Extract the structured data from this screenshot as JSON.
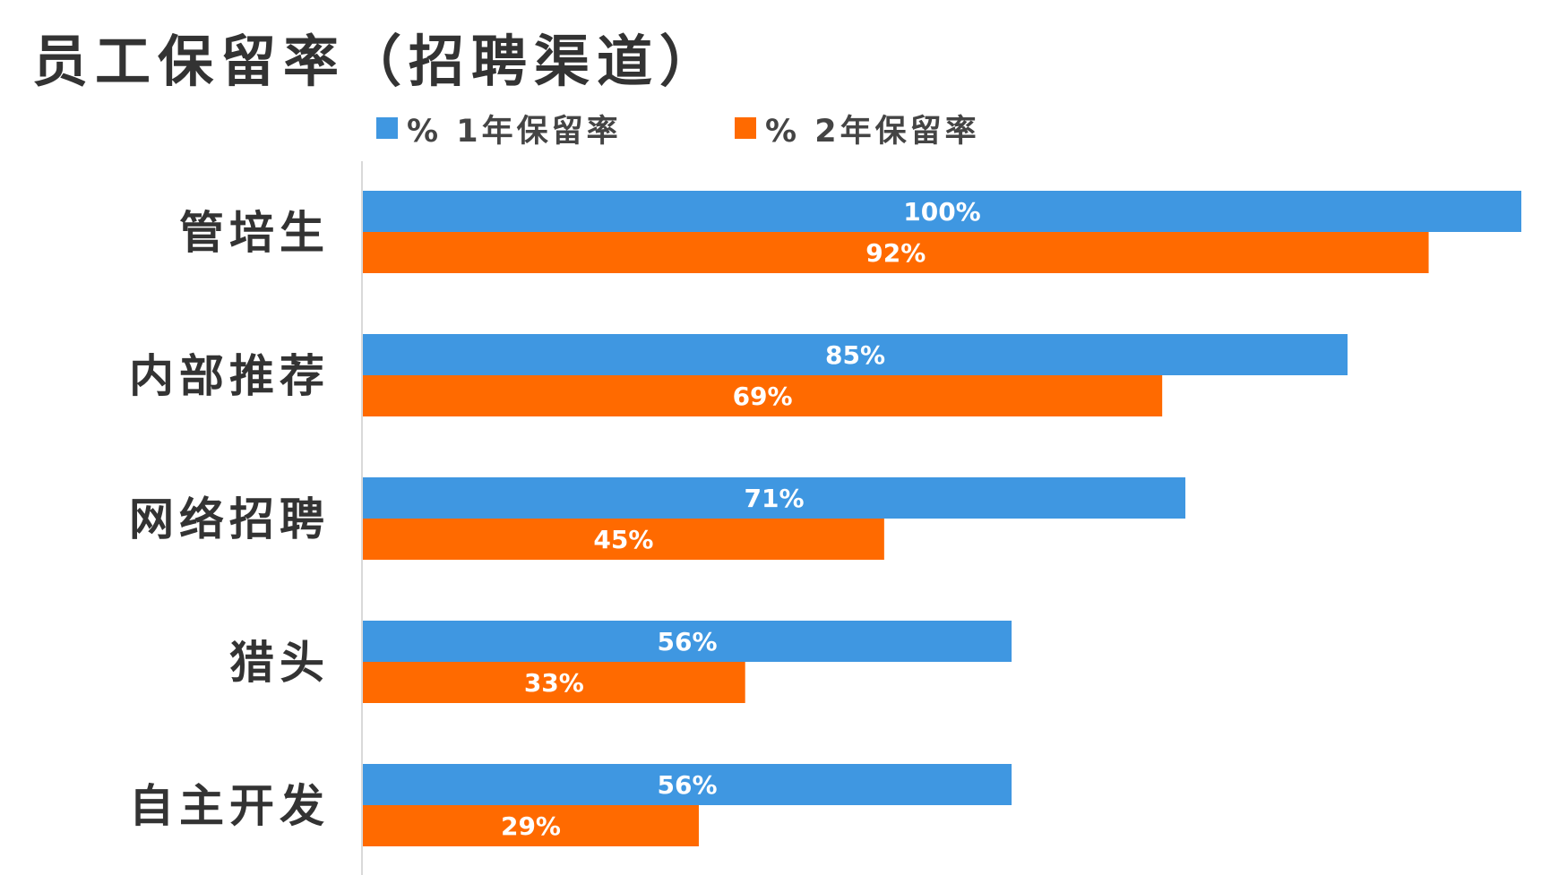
{
  "chart_data": {
    "type": "bar",
    "orientation": "horizontal",
    "title": "员工保留率（招聘渠道）",
    "categories": [
      "管培生",
      "内部推荐",
      "网络招聘",
      "猎头",
      "自主开发"
    ],
    "series": [
      {
        "name": "% 1年保留率",
        "color": "#3F97E1",
        "values": [
          100,
          85,
          71,
          56,
          56
        ],
        "labels": [
          "100%",
          "85%",
          "71%",
          "56%",
          "56%"
        ]
      },
      {
        "name": "% 2年保留率",
        "color": "#FF6A00",
        "values": [
          92,
          69,
          45,
          33,
          29
        ],
        "labels": [
          "92%",
          "69%",
          "45%",
          "33%",
          "29%"
        ]
      }
    ],
    "xlim": [
      0,
      100
    ],
    "legend_position": "top",
    "grid": false
  }
}
